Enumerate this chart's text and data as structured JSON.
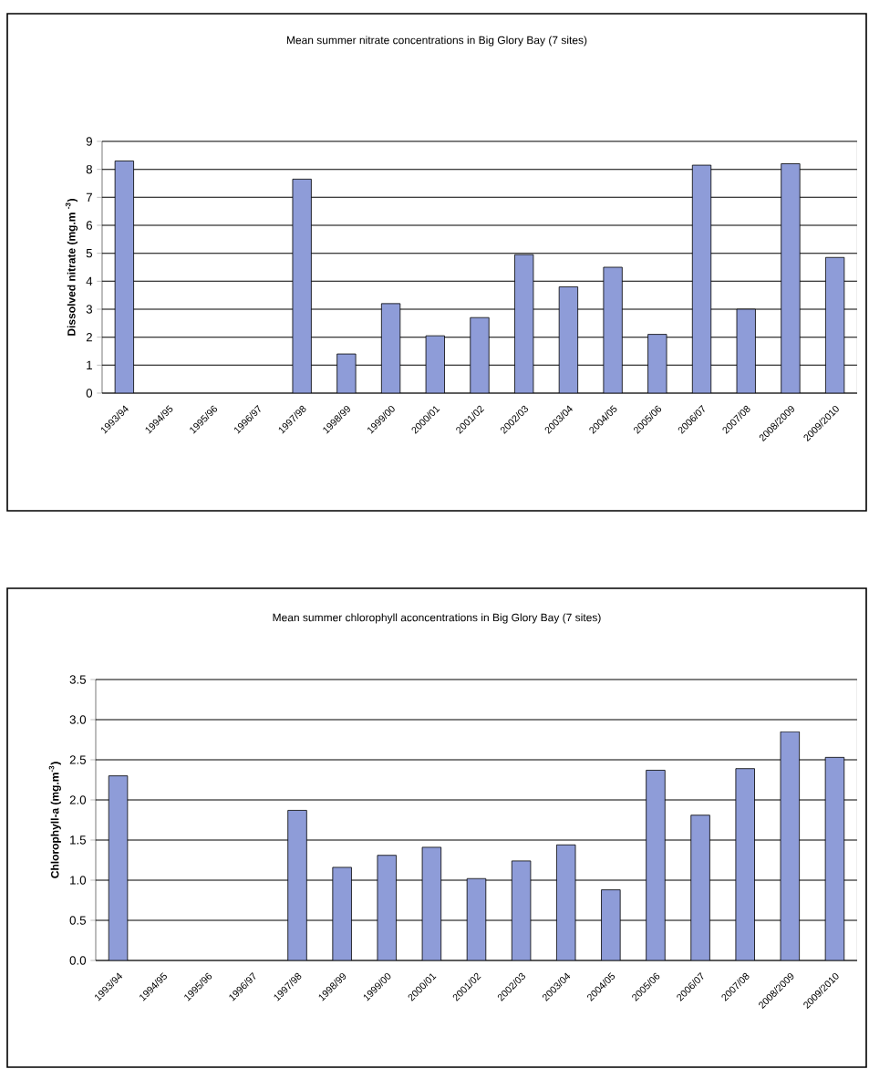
{
  "chart_data": [
    {
      "type": "bar",
      "title": "Mean summer nitrate concentrations in Big Glory Bay (7 sites)",
      "ylabel": "Dissolved nitrate (mg.m $^{-3}$)",
      "categories": [
        "1993/94",
        "1994/95",
        "1995/96",
        "1996/97",
        "1997/98",
        "1998/99",
        "1999/00",
        "2000/01",
        "2001/02",
        "2002/03",
        "2003/04",
        "2004/05",
        "2005/06",
        "2006/07",
        "2007/08",
        "2008/2009",
        "2009/2010"
      ],
      "values": [
        8.3,
        null,
        null,
        null,
        7.65,
        1.4,
        3.2,
        2.05,
        2.7,
        4.95,
        3.8,
        4.5,
        2.1,
        8.15,
        3.0,
        8.2,
        4.85
      ],
      "color": "#8e9cd8",
      "ylim": [
        0,
        9
      ],
      "yticks": [
        0,
        1,
        2,
        3,
        4,
        5,
        6,
        7,
        8,
        9
      ],
      "grid": "y"
    },
    {
      "type": "bar",
      "title": "Mean summer chlorophyll aconcentrations in Big Glory Bay (7 sites)",
      "ylabel": "Chlorophyll-a  (mg.m$^{-3}$)",
      "categories": [
        "1993/94",
        "1994/95",
        "1995/96",
        "1996/97",
        "1997/98",
        "1998/99",
        "1999/00",
        "2000/01",
        "2001/02",
        "2002/03",
        "2003/04",
        "2004/05",
        "2005/06",
        "2006/07",
        "2007/08",
        "2008/2009",
        "2009/2010"
      ],
      "values": [
        2.3,
        null,
        null,
        null,
        1.87,
        1.16,
        1.31,
        1.41,
        1.02,
        1.24,
        1.44,
        0.88,
        2.37,
        1.81,
        2.39,
        2.85,
        2.53
      ],
      "color": "#8e9cd8",
      "ylim": [
        0,
        3.5
      ],
      "yticks": [
        {
          "value": 0,
          "label": "0.0"
        },
        {
          "value": 0.5,
          "label": "0.5"
        },
        {
          "value": 1,
          "label": "1.0"
        },
        {
          "value": 1.5,
          "label": "1.5"
        },
        {
          "value": 2,
          "label": "2.0"
        },
        {
          "value": 2.5,
          "label": "2.5"
        },
        {
          "value": 3,
          "label": "3.0"
        },
        {
          "value": 3.5,
          "label": "3.5"
        }
      ],
      "grid": "y"
    }
  ]
}
